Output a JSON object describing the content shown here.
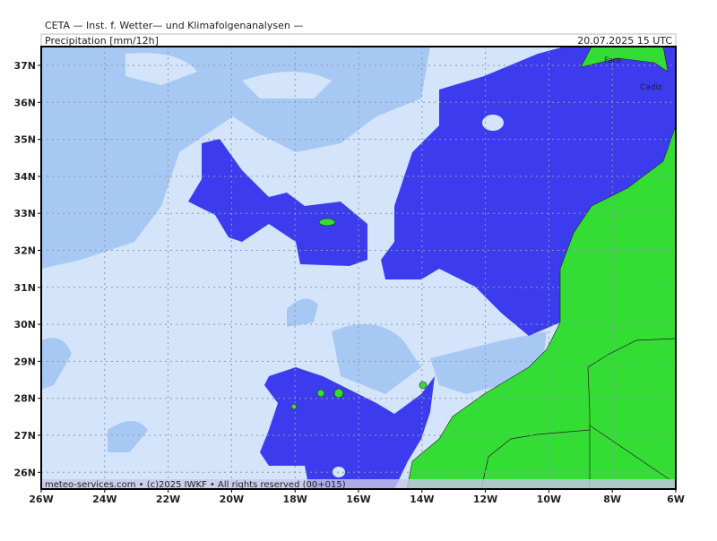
{
  "header": {
    "title": "CETA — Inst. f. Wetter— und Klimafolgenanalysen —",
    "product": "Precipitation [mm/12h]",
    "valid_time": "20.07.2025  15 UTC"
  },
  "map": {
    "lat_labels": [
      "37N",
      "36N",
      "35N",
      "34N",
      "33N",
      "32N",
      "31N",
      "30N",
      "29N",
      "28N",
      "27N",
      "26N"
    ],
    "lon_labels": [
      "26W",
      "24W",
      "22W",
      "20W",
      "18W",
      "16W",
      "14W",
      "12W",
      "10W",
      "8W",
      "6W"
    ],
    "places": [
      "Faro",
      "Cadiz"
    ],
    "footer": "meteo-services.com • (c)2025 IWKF • All rights reserved (00+015)"
  }
}
